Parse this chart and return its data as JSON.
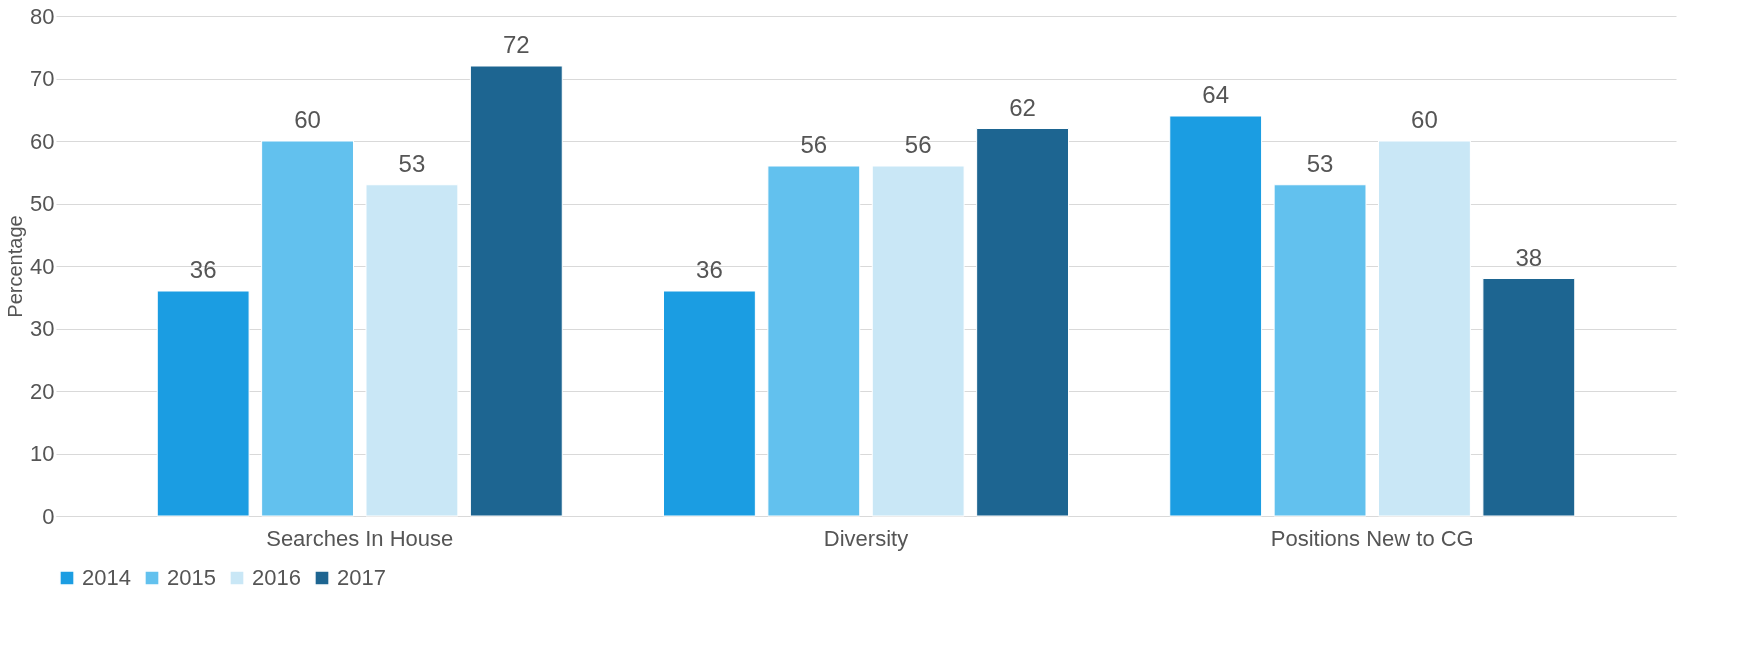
{
  "chart_data": {
    "type": "bar",
    "ylabel": "Percentage",
    "categories": [
      "Searches In House",
      "Diversity",
      "Positions New to CG"
    ],
    "series": [
      {
        "name": "2014",
        "color": "#1b9de2",
        "values": [
          36,
          36,
          64
        ]
      },
      {
        "name": "2015",
        "color": "#62c1ee",
        "values": [
          60,
          56,
          53
        ]
      },
      {
        "name": "2016",
        "color": "#c9e7f6",
        "values": [
          53,
          56,
          60
        ]
      },
      {
        "name": "2017",
        "color": "#1d6591",
        "values": [
          72,
          62,
          38
        ]
      }
    ],
    "ylim": [
      0,
      80
    ],
    "yticks": [
      0,
      10,
      20,
      30,
      40,
      50,
      60,
      70,
      80
    ],
    "grid": "y",
    "legend": "bottom",
    "data_labels": true
  }
}
